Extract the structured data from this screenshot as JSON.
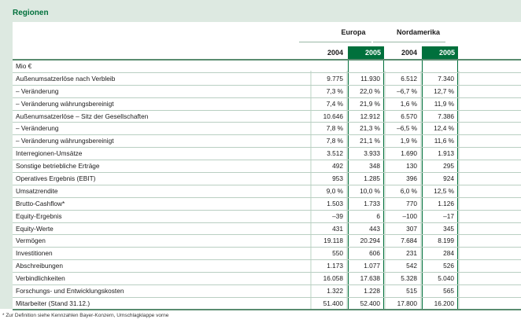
{
  "title": "Regionen",
  "regions": [
    "Europa",
    "Nordamerika"
  ],
  "years": [
    "2004",
    "2005"
  ],
  "rows": [
    {
      "label": "Mio €",
      "e04": "",
      "e05": "",
      "n04": "",
      "n05": ""
    },
    {
      "label": "Außenumsatzerlöse nach Verbleib",
      "e04": "9.775",
      "e05": "11.930",
      "n04": "6.512",
      "n05": "7.340"
    },
    {
      "label": "– Veränderung",
      "e04": "7,3 %",
      "e05": "22,0 %",
      "n04": "–6,7 %",
      "n05": "12,7 %"
    },
    {
      "label": "– Veränderung währungsbereinigt",
      "e04": "7,4 %",
      "e05": "21,9 %",
      "n04": "1,6 %",
      "n05": "11,9 %"
    },
    {
      "label": "Außenumsatzerlöse – Sitz der Gesellschaften",
      "e04": "10.646",
      "e05": "12.912",
      "n04": "6.570",
      "n05": "7.386"
    },
    {
      "label": "– Veränderung",
      "e04": "7,8 %",
      "e05": "21,3 %",
      "n04": "–6,5 %",
      "n05": "12,4 %"
    },
    {
      "label": "– Veränderung währungsbereinigt",
      "e04": "7,8 %",
      "e05": "21,1 %",
      "n04": "1,9 %",
      "n05": "11,6 %"
    },
    {
      "label": "Interregionen-Umsätze",
      "e04": "3.512",
      "e05": "3.933",
      "n04": "1.690",
      "n05": "1.913"
    },
    {
      "label": "Sonstige betriebliche Erträge",
      "e04": "492",
      "e05": "348",
      "n04": "130",
      "n05": "295"
    },
    {
      "label": "Operatives Ergebnis (EBIT)",
      "e04": "953",
      "e05": "1.285",
      "n04": "396",
      "n05": "924"
    },
    {
      "label": "Umsatzrendite",
      "e04": "9,0 %",
      "e05": "10,0 %",
      "n04": "6,0 %",
      "n05": "12,5 %"
    },
    {
      "label": "Brutto-Cashflow*",
      "e04": "1.503",
      "e05": "1.733",
      "n04": "770",
      "n05": "1.126"
    },
    {
      "label": "Equity-Ergebnis",
      "e04": "–39",
      "e05": "6",
      "n04": "–100",
      "n05": "–17"
    },
    {
      "label": "Equity-Werte",
      "e04": "431",
      "e05": "443",
      "n04": "307",
      "n05": "345"
    },
    {
      "label": "Vermögen",
      "e04": "19.118",
      "e05": "20.294",
      "n04": "7.684",
      "n05": "8.199"
    },
    {
      "label": "Investitionen",
      "e04": "550",
      "e05": "606",
      "n04": "231",
      "n05": "284"
    },
    {
      "label": "Abschreibungen",
      "e04": "1.173",
      "e05": "1.077",
      "n04": "542",
      "n05": "526"
    },
    {
      "label": "Verbindlichkeiten",
      "e04": "16.058",
      "e05": "17.638",
      "n04": "5.328",
      "n05": "5.040"
    },
    {
      "label": "Forschungs- und Entwicklungskosten",
      "e04": "1.322",
      "e05": "1.228",
      "n04": "515",
      "n05": "565"
    },
    {
      "label": "Mitarbeiter (Stand 31.12.)",
      "e04": "51.400",
      "e05": "52.400",
      "n04": "17.800",
      "n05": "16.200"
    }
  ],
  "footnote": "* Zur Definition siehe Kennzahlen Bayer-Konzern, Umschlagklappe vorne",
  "colors": {
    "accent": "#00703c",
    "panel": "#dde9e1"
  }
}
